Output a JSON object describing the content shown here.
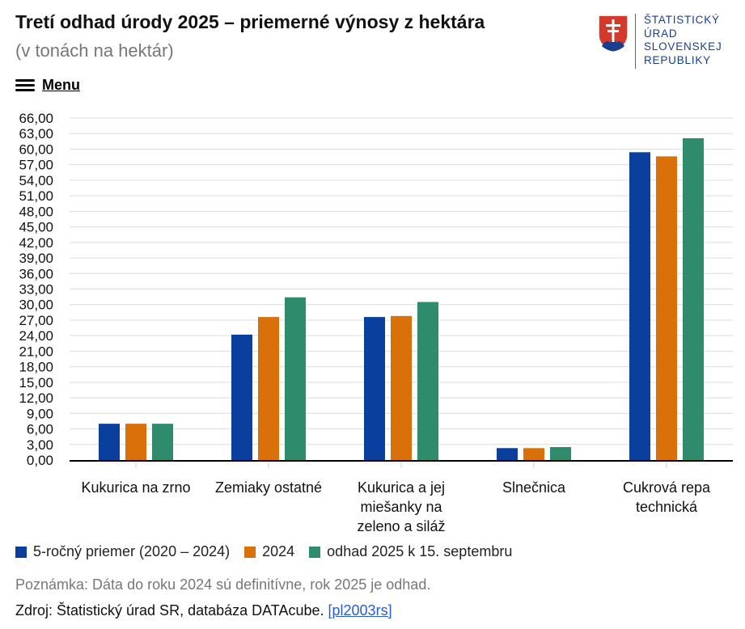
{
  "header": {
    "title": "Tretí odhad úrody 2025 – priemerné výnosy z hektára",
    "subtitle": "(v tonách na hektár)"
  },
  "logo": {
    "lines": [
      "ŠTATISTICKÝ",
      "ÚRAD",
      "SLOVENSKEJ",
      "REPUBLIKY"
    ],
    "icon": "slovak-coat-of-arms-icon",
    "colors": {
      "red": "#d23a2c",
      "blue": "#1a3e8f"
    }
  },
  "menu": {
    "label": "Menu",
    "icon": "hamburger-icon"
  },
  "chart_data": {
    "type": "bar",
    "title": "Tretí odhad úrody 2025 – priemerné výnosy z hektára",
    "subtitle": "(v tonách na hektár)",
    "categories": [
      [
        "Kukurica na zrno"
      ],
      [
        "Zemiaky ostatné"
      ],
      [
        "Kukurica a jej",
        "miešanky na",
        "zeleno a siláž"
      ],
      [
        "Slnečnica"
      ],
      [
        "Cukrová repa",
        "technická"
      ]
    ],
    "series": [
      {
        "name": "5-ročný priemer (2020 – 2024)",
        "color": "#0a3f9e",
        "values": [
          7.0,
          24.2,
          27.6,
          2.3,
          59.4
        ]
      },
      {
        "name": "2024",
        "color": "#d9700a",
        "values": [
          7.0,
          27.6,
          27.8,
          2.3,
          58.6
        ]
      },
      {
        "name": "odhad 2025 k 15. septembru",
        "color": "#2e8b6b",
        "values": [
          7.0,
          31.4,
          30.5,
          2.5,
          62.1
        ]
      }
    ],
    "ylim": [
      0,
      66
    ],
    "yticks": [
      "0,00",
      "3,00",
      "6,00",
      "9,00",
      "12,00",
      "15,00",
      "18,00",
      "21,00",
      "24,00",
      "27,00",
      "30,00",
      "33,00",
      "36,00",
      "39,00",
      "42,00",
      "45,00",
      "48,00",
      "51,00",
      "54,00",
      "57,00",
      "60,00",
      "63,00",
      "66,00"
    ],
    "grid": true,
    "legend_position": "bottom-left"
  },
  "note": "Poznámka: Dáta do roku 2024 sú definitívne, rok 2025 je odhad.",
  "source": {
    "text": "Zdroj: Štatistický úrad SR, databáza DATAcube.",
    "link": "[pl2003rs]"
  }
}
